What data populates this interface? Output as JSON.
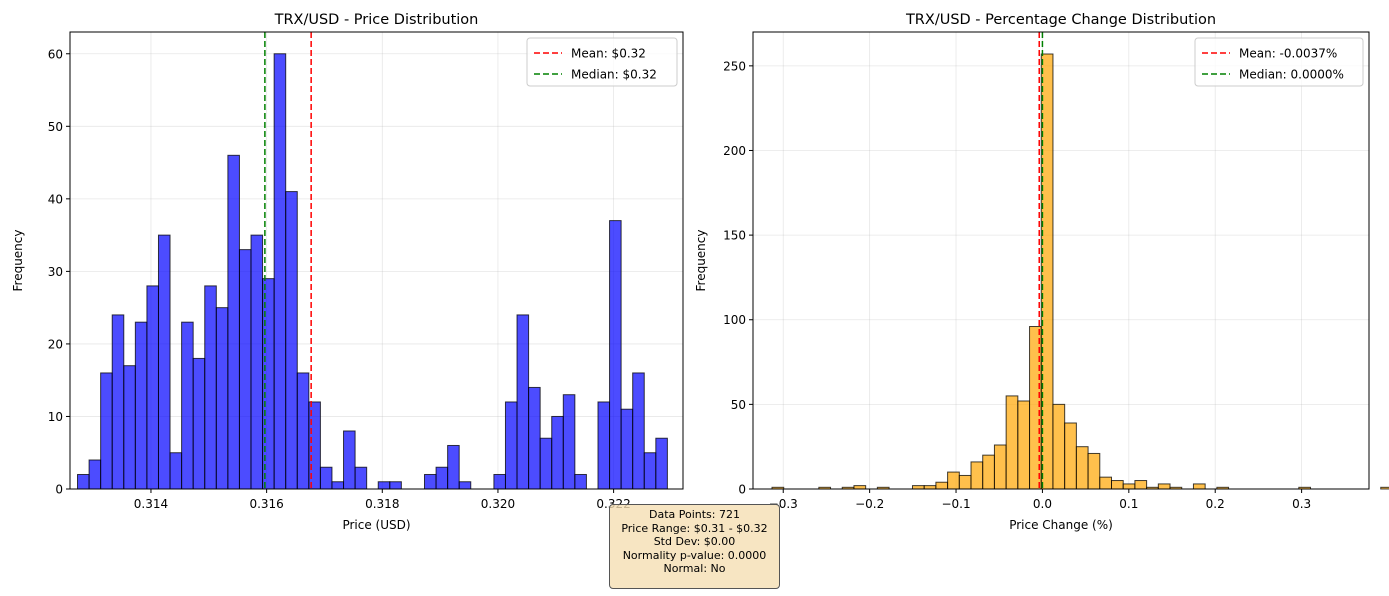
{
  "chart_data": [
    {
      "type": "bar",
      "title": "TRX/USD - Price Distribution",
      "xlabel": "Price (USD)",
      "ylabel": "Frequency",
      "xlim": [
        0.3126,
        0.3232
      ],
      "ylim": [
        0,
        63
      ],
      "x_ticks": [
        0.314,
        0.316,
        0.318,
        0.32,
        0.322
      ],
      "x_tick_labels": [
        "0.314",
        "0.316",
        "0.318",
        "0.320",
        "0.322"
      ],
      "y_ticks": [
        0,
        10,
        20,
        30,
        40,
        50,
        60
      ],
      "bins_start": 0.31273,
      "bin_width": 0.0002,
      "values": [
        2,
        4,
        16,
        24,
        17,
        23,
        28,
        35,
        5,
        23,
        18,
        28,
        25,
        46,
        33,
        35,
        29,
        60,
        41,
        16,
        12,
        3,
        1,
        8,
        3,
        0,
        1,
        1,
        0,
        0,
        2,
        3,
        6,
        1,
        0,
        0,
        2,
        12,
        24,
        14,
        7,
        10,
        13,
        2,
        0,
        12,
        37,
        11,
        16,
        5,
        7
      ],
      "bar_color": "#0000ff",
      "bar_alpha": 0.7,
      "mean": 0.31677,
      "median": 0.31597,
      "legend": [
        {
          "label": "Mean: $0.32",
          "color": "#ff0000"
        },
        {
          "label": "Median: $0.32",
          "color": "#008000"
        }
      ],
      "legend_position": "top-right",
      "grid": true
    },
    {
      "type": "bar",
      "title": "TRX/USD - Percentage Change Distribution",
      "xlabel": "Price Change (%)",
      "ylabel": "Frequency",
      "xlim": [
        -0.335,
        0.378
      ],
      "ylim": [
        0,
        270
      ],
      "x_ticks": [
        -0.3,
        -0.2,
        -0.1,
        0.0,
        0.1,
        0.2,
        0.3
      ],
      "x_tick_labels": [
        "−0.3",
        "−0.2",
        "−0.1",
        "0.0",
        "0.1",
        "0.2",
        "0.3"
      ],
      "y_ticks": [
        0,
        50,
        100,
        150,
        200,
        250
      ],
      "bins_start": -0.313,
      "bin_width": 0.01355,
      "values": [
        1,
        0,
        0,
        0,
        1,
        0,
        1,
        2,
        0,
        1,
        0,
        0,
        2,
        2,
        4,
        10,
        8,
        16,
        20,
        26,
        55,
        52,
        96,
        257,
        50,
        39,
        25,
        21,
        7,
        5,
        3,
        5,
        1,
        3,
        1,
        0,
        3,
        0,
        1,
        0,
        0,
        0,
        0,
        0,
        0,
        1,
        0,
        0,
        0,
        0,
        0,
        0,
        1
      ],
      "bar_color": "#ffa500",
      "bar_alpha": 0.7,
      "mean": -0.0037,
      "median": 0.0,
      "legend": [
        {
          "label": "Mean: -0.0037%",
          "color": "#ff0000"
        },
        {
          "label": "Median: 0.0000%",
          "color": "#008000"
        }
      ],
      "legend_position": "top-right",
      "grid": true
    }
  ],
  "stats": {
    "lines": [
      "Data Points: 721",
      "Price Range: $0.31 - $0.32",
      "Std Dev: $0.00",
      "Normality p-value: 0.0000",
      "Normal: No"
    ]
  }
}
